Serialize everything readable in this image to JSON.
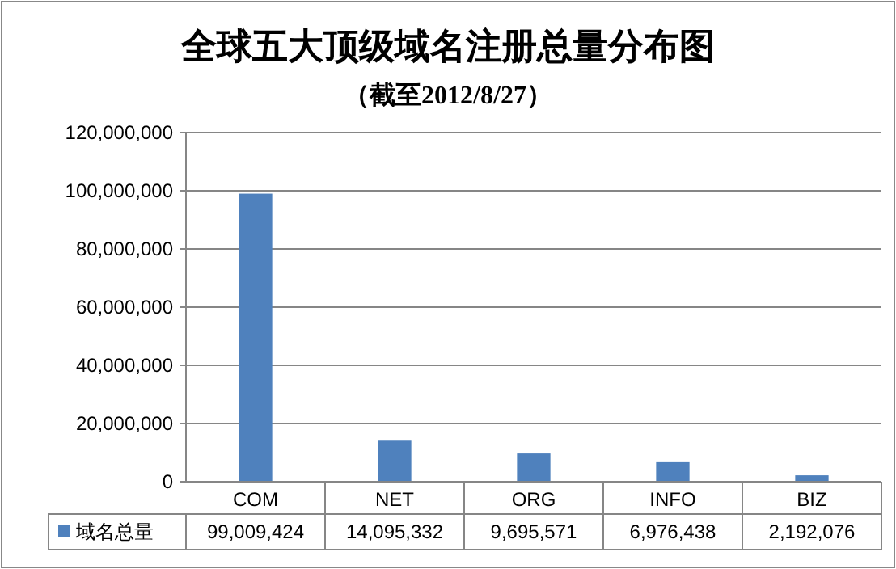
{
  "chart_data": {
    "type": "bar",
    "title": "全球五大顶级域名注册总量分布图",
    "subtitle": "（截至2012/8/27）",
    "categories": [
      "COM",
      "NET",
      "ORG",
      "INFO",
      "BIZ"
    ],
    "series": [
      {
        "name": "域名总量",
        "color": "#4f81bd",
        "values": [
          99009424,
          14095332,
          9695571,
          6976438,
          2192076
        ],
        "value_labels": [
          "99,009,424",
          "14,095,332",
          "9,695,571",
          "6,976,438",
          "2,192,076"
        ]
      }
    ],
    "ylim": [
      0,
      120000000
    ],
    "yticks": [
      {
        "value": 0,
        "label": "0"
      },
      {
        "value": 20000000,
        "label": "20,000,000"
      },
      {
        "value": 40000000,
        "label": "40,000,000"
      },
      {
        "value": 60000000,
        "label": "60,000,000"
      },
      {
        "value": 80000000,
        "label": "80,000,000"
      },
      {
        "value": 100000000,
        "label": "100,000,000"
      },
      {
        "value": 120000000,
        "label": "120,000,000"
      }
    ],
    "grid": "y",
    "legend": "bottom"
  }
}
